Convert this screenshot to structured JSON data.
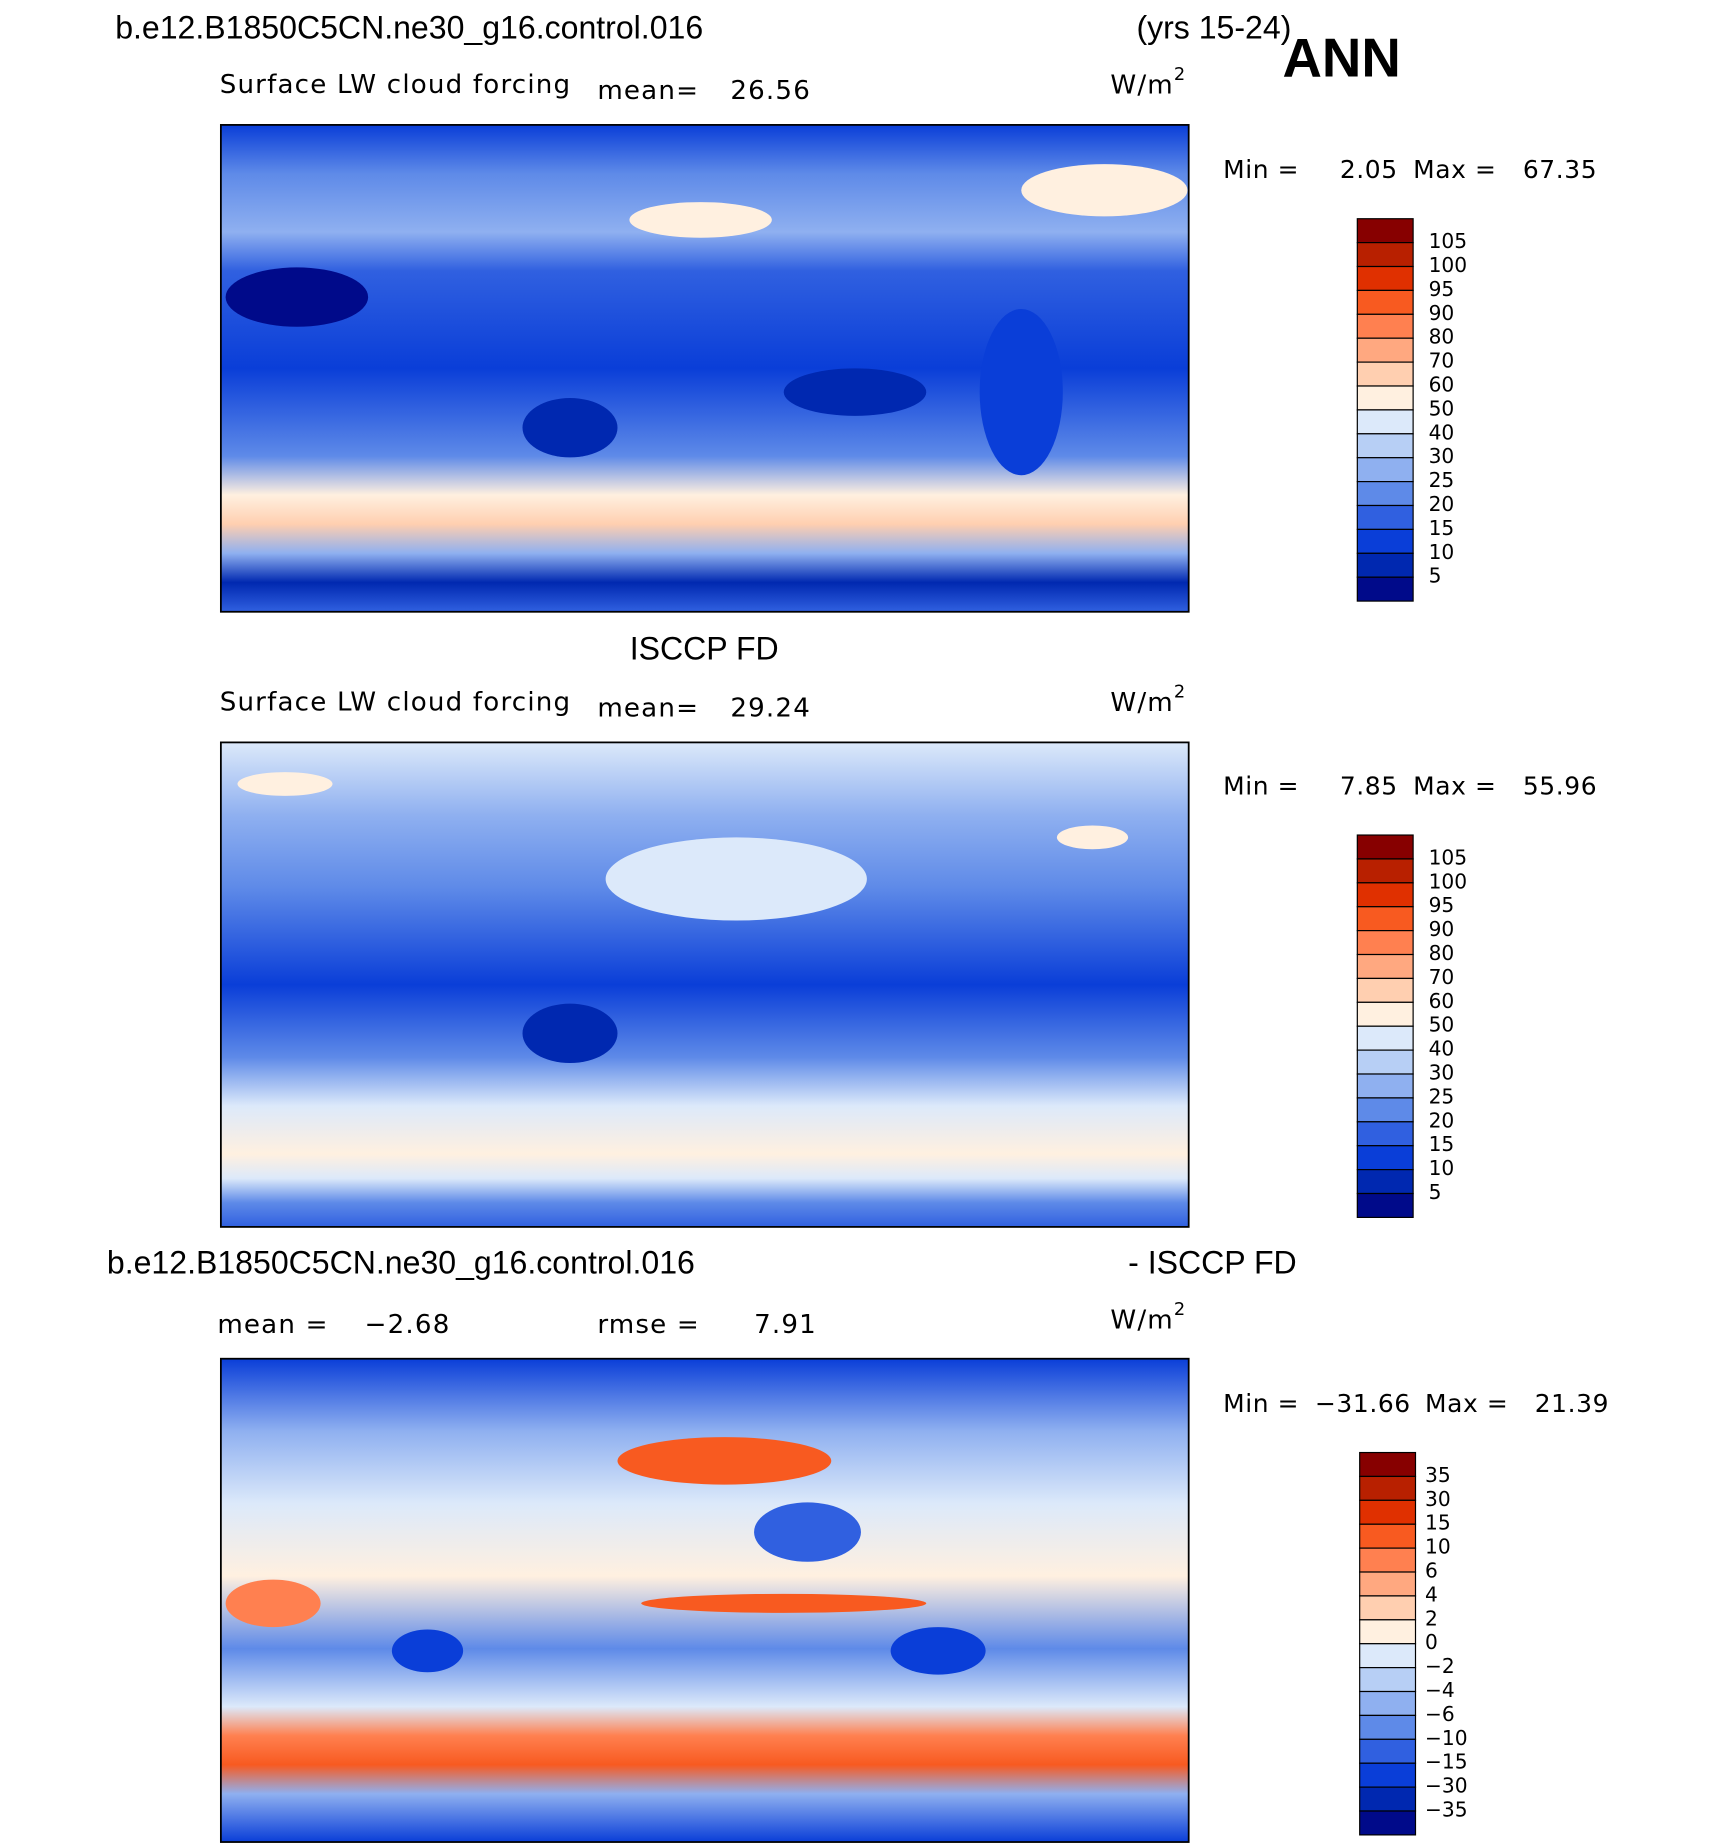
{
  "header": {
    "case": "b.e12.B1850C5CN.ne30_g16.control.016",
    "years": "(yrs 15-24)",
    "season": "ANN"
  },
  "panels": [
    {
      "variable": "Surface LW cloud forcing",
      "mean_label": "mean=",
      "mean": "26.56",
      "units": "W/m",
      "units_exp": "2",
      "min_label": "Min =",
      "min": "2.05",
      "max_label": "Max =",
      "max": "67.35",
      "colorbar": {
        "labels": [
          "105",
          "100",
          "95",
          "90",
          "80",
          "70",
          "60",
          "50",
          "40",
          "30",
          "25",
          "20",
          "15",
          "10",
          "5"
        ],
        "colors": [
          "#870000",
          "#b82000",
          "#e03000",
          "#f85a20",
          "#ff8050",
          "#ffa880",
          "#ffcfb0",
          "#fff0e0",
          "#dce9fa",
          "#b7cff5",
          "#8fb0f0",
          "#5e8ae8",
          "#3060e0",
          "#0a3ed8",
          "#0028b0",
          "#000a8a"
        ]
      }
    },
    {
      "title": "ISCCP FD",
      "variable": "Surface LW cloud forcing",
      "mean_label": "mean=",
      "mean": "29.24",
      "units": "W/m",
      "units_exp": "2",
      "min_label": "Min =",
      "min": "7.85",
      "max_label": "Max =",
      "max": "55.96",
      "colorbar": {
        "labels": [
          "105",
          "100",
          "95",
          "90",
          "80",
          "70",
          "60",
          "50",
          "40",
          "30",
          "25",
          "20",
          "15",
          "10",
          "5"
        ],
        "colors": [
          "#870000",
          "#b82000",
          "#e03000",
          "#f85a20",
          "#ff8050",
          "#ffa880",
          "#ffcfb0",
          "#fff0e0",
          "#dce9fa",
          "#b7cff5",
          "#8fb0f0",
          "#5e8ae8",
          "#3060e0",
          "#0a3ed8",
          "#0028b0",
          "#000a8a"
        ]
      }
    },
    {
      "title_left": "b.e12.B1850C5CN.ne30_g16.control.016",
      "title_right": "- ISCCP FD",
      "mean_label": "mean =",
      "mean": "−2.68",
      "rmse_label": "rmse =",
      "rmse": "7.91",
      "units": "W/m",
      "units_exp": "2",
      "min_label": "Min =",
      "min": "−31.66",
      "max_label": "Max =",
      "max": "21.39",
      "colorbar": {
        "labels": [
          "35",
          "30",
          "15",
          "10",
          "6",
          "4",
          "2",
          "0",
          "−2",
          "−4",
          "−6",
          "−10",
          "−15",
          "−30",
          "−35"
        ],
        "colors": [
          "#870000",
          "#b82000",
          "#e03000",
          "#f85a20",
          "#ff8050",
          "#ffa880",
          "#ffcfb0",
          "#fff0e0",
          "#dce9fa",
          "#b7cff5",
          "#8fb0f0",
          "#5e8ae8",
          "#3060e0",
          "#0a3ed8",
          "#0028b0",
          "#000a8a"
        ]
      }
    }
  ]
}
